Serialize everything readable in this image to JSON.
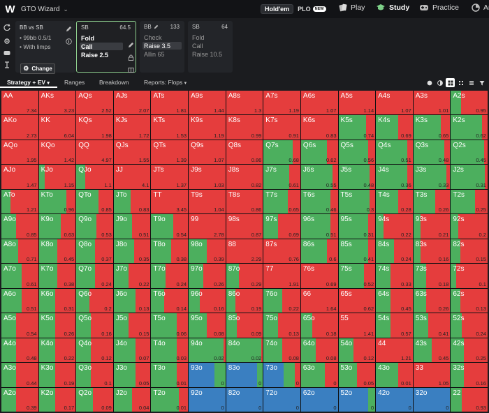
{
  "app": {
    "title": "GTO Wizard",
    "logo": "W"
  },
  "game": {
    "holdem": "Hold'em",
    "plo": "PLO",
    "new_badge": "NEW"
  },
  "nav": {
    "play": "Play",
    "study": "Study",
    "practice": "Practice",
    "analyze": "Ana"
  },
  "scenario": {
    "title": "BB vs SB",
    "line1": "• 99bb 0.5/1",
    "line2": "• With limps",
    "change": "Change"
  },
  "steps": [
    {
      "pos": "SB",
      "stack": "64.5",
      "actions": [
        "Fold",
        "Call",
        "Raise 2.5"
      ],
      "selected": 1
    },
    {
      "pos": "BB",
      "stack": "133",
      "actions": [
        "Check",
        "Raise 3.5",
        "Allin 65"
      ],
      "selected": 1
    },
    {
      "pos": "SB",
      "stack": "64",
      "actions": [
        "Fold",
        "Call",
        "Raise 10.5"
      ],
      "selected": -1
    }
  ],
  "tabs": {
    "strategy": "Strategy + EV",
    "ranges": "Ranges",
    "breakdown": "Breakdown",
    "reports": "Reports: Flops"
  },
  "colors": {
    "fold": "#3a7fc1",
    "call": "#4caf5e",
    "raise": "#e53d3d"
  },
  "grid": [
    [
      [
        "AA",
        "7.34",
        0,
        0,
        0
      ],
      [
        "AKs",
        "3.23",
        0,
        0,
        0
      ],
      [
        "AQs",
        "2.52",
        0,
        0,
        0
      ],
      [
        "AJs",
        "2.07",
        0,
        0,
        0
      ],
      [
        "ATs",
        "1.81",
        0,
        0,
        0
      ],
      [
        "A9s",
        "1.44",
        0,
        0,
        0
      ],
      [
        "A8s",
        "1.3",
        0,
        0,
        0
      ],
      [
        "A7s",
        "1.19",
        0,
        0,
        0
      ],
      [
        "A6s",
        "1.07",
        0,
        0,
        0
      ],
      [
        "A5s",
        "1.14",
        0,
        0,
        0
      ],
      [
        "A4s",
        "1.07",
        0,
        0,
        0
      ],
      [
        "A3s",
        "1.01",
        0,
        0,
        0
      ],
      [
        "A2s",
        "0.95",
        0,
        0.28,
        0
      ]
    ],
    [
      [
        "AKo",
        "2.73",
        0,
        0,
        0
      ],
      [
        "KK",
        "6.04",
        0,
        0,
        0
      ],
      [
        "KQs",
        "1.98",
        0,
        0,
        0
      ],
      [
        "KJs",
        "1.72",
        0,
        0,
        0
      ],
      [
        "KTs",
        "1.53",
        0,
        0,
        0
      ],
      [
        "K9s",
        "1.19",
        0,
        0,
        0
      ],
      [
        "K8s",
        "0.99",
        0,
        0,
        0
      ],
      [
        "K7s",
        "0.91",
        0,
        0,
        0
      ],
      [
        "K6s",
        "0.83",
        0,
        0,
        0
      ],
      [
        "K5s",
        "0.74",
        0,
        0.75,
        0
      ],
      [
        "K4s",
        "0.69",
        0,
        0.6,
        0
      ],
      [
        "K3s",
        "0.65",
        0,
        0.75,
        0
      ],
      [
        "K2s",
        "0.62",
        0,
        0.85,
        0
      ]
    ],
    [
      [
        "AQo",
        "1.95",
        0,
        0,
        0
      ],
      [
        "KQo",
        "1.42",
        0,
        0,
        0
      ],
      [
        "QQ",
        "4.97",
        0,
        0,
        0
      ],
      [
        "QJs",
        "1.55",
        0,
        0,
        0
      ],
      [
        "QTs",
        "1.39",
        0,
        0,
        0
      ],
      [
        "Q9s",
        "1.07",
        0,
        0,
        0
      ],
      [
        "Q8s",
        "0.86",
        0,
        0,
        0
      ],
      [
        "Q7s",
        "0.68",
        0,
        0.8,
        0
      ],
      [
        "Q6s",
        "0.62",
        0,
        0.7,
        0
      ],
      [
        "Q5s",
        "0.56",
        0,
        0.8,
        0
      ],
      [
        "Q4s",
        "0.51",
        0,
        0.85,
        0
      ],
      [
        "Q3s",
        "0.48",
        0,
        0.85,
        0
      ],
      [
        "Q2s",
        "0.45",
        0,
        0.9,
        0
      ]
    ],
    [
      [
        "AJo",
        "1.47",
        0,
        0,
        0
      ],
      [
        "KJo",
        "1.15",
        0,
        0.15,
        0
      ],
      [
        "QJo",
        "1.1",
        0,
        0.25,
        0
      ],
      [
        "JJ",
        "4.1",
        0,
        0,
        0
      ],
      [
        "JTs",
        "1.37",
        0,
        0,
        0
      ],
      [
        "J9s",
        "1.03",
        0,
        0,
        0
      ],
      [
        "J8s",
        "0.82",
        0,
        0,
        0
      ],
      [
        "J7s",
        "0.61",
        0,
        0.7,
        0
      ],
      [
        "J6s",
        "0.55",
        0,
        0.85,
        0
      ],
      [
        "J5s",
        "0.48",
        0,
        0.85,
        0
      ],
      [
        "J4s",
        "0.36",
        0,
        0.85,
        0
      ],
      [
        "J3s",
        "0.33",
        0,
        0.9,
        0
      ],
      [
        "J2s",
        "0.31",
        0,
        0.92,
        0
      ]
    ],
    [
      [
        "ATo",
        "1.21",
        0,
        0.25,
        0
      ],
      [
        "KTo",
        "0.96",
        0,
        0.75,
        0
      ],
      [
        "QTo",
        "0.85",
        0,
        0.6,
        0
      ],
      [
        "JTo",
        "0.83",
        0,
        0.45,
        0
      ],
      [
        "TT",
        "3.45",
        0,
        0,
        0
      ],
      [
        "T9s",
        "1.04",
        0,
        0,
        0
      ],
      [
        "T8s",
        "0.86",
        0,
        0,
        0
      ],
      [
        "T7s",
        "0.65",
        0,
        0.65,
        0
      ],
      [
        "T6s",
        "0.46",
        0,
        0.8,
        0
      ],
      [
        "T5s",
        "0.3",
        0,
        0.85,
        0
      ],
      [
        "T4s",
        "0.28",
        0,
        0.6,
        0
      ],
      [
        "T3s",
        "0.26",
        0,
        0.6,
        0
      ],
      [
        "T2s",
        "0.25",
        0,
        0.65,
        0
      ]
    ],
    [
      [
        "A9o",
        "0.85",
        0,
        0.4,
        0
      ],
      [
        "K9o",
        "0.63",
        0,
        0.6,
        0
      ],
      [
        "Q9o",
        "0.53",
        0,
        0.55,
        0
      ],
      [
        "J9o",
        "0.51",
        0,
        0.5,
        0
      ],
      [
        "T9o",
        "0.54",
        0,
        0.6,
        0
      ],
      [
        "99",
        "2.78",
        0,
        0,
        0
      ],
      [
        "98s",
        "0.87",
        0,
        0,
        0
      ],
      [
        "97s",
        "0.69",
        0,
        0.4,
        0
      ],
      [
        "96s",
        "0.51",
        0,
        0.8,
        0
      ],
      [
        "95s",
        "0.31",
        0,
        0.8,
        0
      ],
      [
        "94s",
        "0.22",
        0,
        0.2,
        0
      ],
      [
        "93s",
        "0.21",
        0,
        0.2,
        0
      ],
      [
        "92s",
        "0.2",
        0,
        0.2,
        0
      ]
    ],
    [
      [
        "A8o",
        "0.71",
        0,
        0.45,
        0
      ],
      [
        "K8o",
        "0.45",
        0,
        0.5,
        0
      ],
      [
        "Q8o",
        "0.37",
        0,
        0.5,
        0
      ],
      [
        "J8o",
        "0.35",
        0,
        0.55,
        0
      ],
      [
        "T8o",
        "0.38",
        0,
        0.55,
        0
      ],
      [
        "98o",
        "0.39",
        0,
        0.5,
        0
      ],
      [
        "88",
        "2.29",
        0,
        0,
        0
      ],
      [
        "87s",
        "0.76",
        0,
        0,
        0
      ],
      [
        "86s",
        "0.6",
        0,
        0.7,
        0
      ],
      [
        "85s",
        "0.41",
        0,
        0.8,
        0
      ],
      [
        "84s",
        "0.24",
        0,
        0.5,
        0
      ],
      [
        "83s",
        "0.16",
        0,
        0.2,
        0
      ],
      [
        "82s",
        "0.15",
        0,
        0.25,
        0
      ]
    ],
    [
      [
        "A7o",
        "0.61",
        0,
        0.55,
        0
      ],
      [
        "K7o",
        "0.38",
        0,
        0.5,
        0
      ],
      [
        "Q7o",
        "0.24",
        0,
        0.5,
        0
      ],
      [
        "J7o",
        "0.22",
        0,
        0.4,
        0
      ],
      [
        "T7o",
        "0.24",
        0,
        0.4,
        0
      ],
      [
        "97o",
        "0.26",
        0,
        0.4,
        0
      ],
      [
        "87o",
        "0.29",
        0,
        0.35,
        0
      ],
      [
        "77",
        "1.91",
        0,
        0,
        0
      ],
      [
        "76s",
        "0.69",
        0,
        0,
        0
      ],
      [
        "75s",
        "0.52",
        0,
        0.7,
        0
      ],
      [
        "74s",
        "0.33",
        0,
        0.4,
        0
      ],
      [
        "73s",
        "0.18",
        0,
        0.35,
        0
      ],
      [
        "72s",
        "0.1",
        0,
        0.15,
        0
      ]
    ],
    [
      [
        "A6o",
        "0.51",
        0,
        0.55,
        0
      ],
      [
        "K6o",
        "0.31",
        0,
        0.45,
        0
      ],
      [
        "Q6o",
        "0.2",
        0,
        0.35,
        0
      ],
      [
        "J6o",
        "0.13",
        0,
        0.6,
        0
      ],
      [
        "T6o",
        "0.14",
        0,
        0.35,
        0
      ],
      [
        "96o",
        "0.16",
        0,
        0.3,
        0
      ],
      [
        "86o",
        "0.19",
        0,
        0.25,
        0
      ],
      [
        "76o",
        "0.22",
        0,
        0.5,
        0
      ],
      [
        "66",
        "1.64",
        0,
        0,
        0
      ],
      [
        "65s",
        "0.62",
        0,
        0,
        0
      ],
      [
        "64s",
        "0.45",
        0,
        0.4,
        0
      ],
      [
        "63s",
        "0.26",
        0,
        0.35,
        0
      ],
      [
        "62s",
        "0.13",
        0,
        0.25,
        0
      ]
    ],
    [
      [
        "A5o",
        "0.54",
        0,
        0.4,
        0
      ],
      [
        "K5o",
        "0.26",
        0,
        0.45,
        0
      ],
      [
        "Q5o",
        "0.16",
        0,
        0.4,
        0
      ],
      [
        "J5o",
        "0.15",
        0,
        0.4,
        0
      ],
      [
        "T5o",
        "0.06",
        0,
        0.7,
        0
      ],
      [
        "95o",
        "0.08",
        0,
        0.5,
        0
      ],
      [
        "85o",
        "0.09",
        0,
        0.3,
        0
      ],
      [
        "75o",
        "0.13",
        0,
        0.4,
        0
      ],
      [
        "65o",
        "0.18",
        0,
        0.3,
        0
      ],
      [
        "55",
        "1.41",
        0,
        0,
        0
      ],
      [
        "54s",
        "0.57",
        0,
        0.4,
        0
      ],
      [
        "53s",
        "0.41",
        0,
        0.4,
        0
      ],
      [
        "52s",
        "0.24",
        0,
        0.3,
        0
      ]
    ],
    [
      [
        "A4o",
        "0.48",
        0,
        0.4,
        0
      ],
      [
        "K4o",
        "0.22",
        0,
        0.45,
        0
      ],
      [
        "Q4o",
        "0.12",
        0,
        0.4,
        0
      ],
      [
        "J4o",
        "0.07",
        0,
        0.6,
        0
      ],
      [
        "T4o",
        "0.03",
        0,
        0.7,
        0
      ],
      [
        "94o",
        "0.02",
        0,
        0.95,
        0
      ],
      [
        "84o",
        "0.02",
        0,
        0.95,
        0
      ],
      [
        "74o",
        "0.08",
        0,
        0.5,
        0
      ],
      [
        "64o",
        "0.08",
        0,
        0.4,
        0
      ],
      [
        "54o",
        "0.12",
        0,
        0.4,
        0
      ],
      [
        "44",
        "1.21",
        0,
        0,
        0
      ],
      [
        "43s",
        "0.45",
        0,
        0.5,
        0
      ],
      [
        "42s",
        "0.25",
        0,
        0.35,
        0
      ]
    ],
    [
      [
        "A3o",
        "0.44",
        0,
        0.4,
        0
      ],
      [
        "K3o",
        "0.19",
        0,
        0.45,
        0
      ],
      [
        "Q3o",
        "0.1",
        0,
        0.4,
        0
      ],
      [
        "J3o",
        "0.05",
        0,
        0.6,
        0
      ],
      [
        "T3o",
        "0.01",
        0,
        0.7,
        0
      ],
      [
        "93o",
        "0",
        0.7,
        0.3,
        0
      ],
      [
        "83o",
        "0",
        0.85,
        0.15,
        0
      ],
      [
        "73o",
        "0",
        0.55,
        0.3,
        0
      ],
      [
        "63o",
        "0",
        0,
        0.65,
        0
      ],
      [
        "53o",
        "0.05",
        0,
        0.5,
        0
      ],
      [
        "43o",
        "0.01",
        0,
        0.6,
        0
      ],
      [
        "33",
        "1.05",
        0,
        0,
        0
      ],
      [
        "32s",
        "0.16",
        0,
        0.35,
        0
      ]
    ],
    [
      [
        "A2o",
        "0.39",
        0,
        0.4,
        0
      ],
      [
        "K2o",
        "0.17",
        0,
        0.45,
        0
      ],
      [
        "Q2o",
        "0.09",
        0,
        0.45,
        0
      ],
      [
        "J2o",
        "0.04",
        0,
        0.5,
        0
      ],
      [
        "T2o",
        "0.01",
        0,
        0.75,
        0
      ],
      [
        "92o",
        "0",
        1,
        0,
        0
      ],
      [
        "82o",
        "0",
        1,
        0,
        0
      ],
      [
        "72o",
        "0",
        1,
        0,
        0
      ],
      [
        "62o",
        "0",
        1,
        0,
        0
      ],
      [
        "52o",
        "0",
        0.8,
        0.2,
        0
      ],
      [
        "42o",
        "0",
        1,
        0,
        0
      ],
      [
        "32o",
        "0",
        1,
        0,
        0
      ],
      [
        "22",
        "0.93",
        0,
        0.3,
        0
      ]
    ]
  ]
}
